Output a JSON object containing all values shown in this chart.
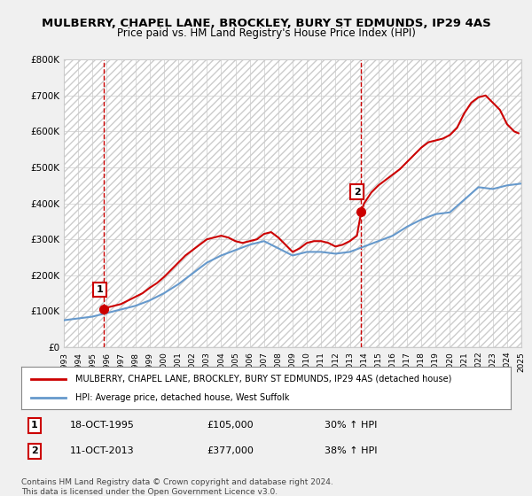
{
  "title": "MULBERRY, CHAPEL LANE, BROCKLEY, BURY ST EDMUNDS, IP29 4AS",
  "subtitle": "Price paid vs. HM Land Registry's House Price Index (HPI)",
  "legend_line1": "MULBERRY, CHAPEL LANE, BROCKLEY, BURY ST EDMUNDS, IP29 4AS (detached house)",
  "legend_line2": "HPI: Average price, detached house, West Suffolk",
  "footnote": "Contains HM Land Registry data © Crown copyright and database right 2024.\nThis data is licensed under the Open Government Licence v3.0.",
  "sale1_date": "18-OCT-1995",
  "sale1_price": 105000,
  "sale1_label": "30% ↑ HPI",
  "sale1_x": 1995.8,
  "sale2_date": "11-OCT-2013",
  "sale2_price": 377000,
  "sale2_label": "38% ↑ HPI",
  "sale2_x": 2013.8,
  "red_color": "#cc0000",
  "blue_color": "#6699cc",
  "background_color": "#f0f0f0",
  "plot_bg_color": "#ffffff",
  "grid_color": "#cccccc",
  "ylim": [
    0,
    800000
  ],
  "xlim": [
    1993,
    2025
  ],
  "yticks": [
    0,
    100000,
    200000,
    300000,
    400000,
    500000,
    600000,
    700000,
    800000
  ],
  "xticks": [
    1993,
    1994,
    1995,
    1996,
    1997,
    1998,
    1999,
    2000,
    2001,
    2002,
    2003,
    2004,
    2005,
    2006,
    2007,
    2008,
    2009,
    2010,
    2011,
    2012,
    2013,
    2014,
    2015,
    2016,
    2017,
    2018,
    2019,
    2020,
    2021,
    2022,
    2023,
    2024,
    2025
  ],
  "hpi_x": [
    1993,
    1994,
    1995,
    1996,
    1997,
    1998,
    1999,
    2000,
    2001,
    2002,
    2003,
    2004,
    2005,
    2006,
    2007,
    2008,
    2009,
    2010,
    2011,
    2012,
    2013,
    2014,
    2015,
    2016,
    2017,
    2018,
    2019,
    2020,
    2021,
    2022,
    2023,
    2024,
    2025
  ],
  "hpi_y": [
    75000,
    80000,
    85000,
    95000,
    105000,
    115000,
    130000,
    150000,
    175000,
    205000,
    235000,
    255000,
    270000,
    285000,
    295000,
    275000,
    255000,
    265000,
    265000,
    260000,
    265000,
    280000,
    295000,
    310000,
    335000,
    355000,
    370000,
    375000,
    410000,
    445000,
    440000,
    450000,
    455000
  ],
  "price_x": [
    1995.8,
    1996,
    1997,
    1997.5,
    1998,
    1998.5,
    1999,
    1999.5,
    2000,
    2000.5,
    2001,
    2001.5,
    2002,
    2002.5,
    2003,
    2003.5,
    2004,
    2004.5,
    2005,
    2005.5,
    2006,
    2006.5,
    2007,
    2007.5,
    2008,
    2008.5,
    2009,
    2009.5,
    2010,
    2010.5,
    2011,
    2011.5,
    2012,
    2012.5,
    2013,
    2013.5,
    2013.8,
    2014,
    2014.5,
    2015,
    2015.5,
    2016,
    2016.5,
    2017,
    2017.5,
    2018,
    2018.5,
    2019,
    2019.5,
    2020,
    2020.5,
    2021,
    2021.5,
    2022,
    2022.5,
    2023,
    2023.5,
    2024,
    2024.5,
    2024.8
  ],
  "price_y": [
    105000,
    110000,
    120000,
    130000,
    140000,
    150000,
    165000,
    178000,
    195000,
    215000,
    235000,
    255000,
    270000,
    285000,
    300000,
    305000,
    310000,
    305000,
    295000,
    290000,
    295000,
    300000,
    315000,
    320000,
    305000,
    285000,
    265000,
    275000,
    290000,
    295000,
    295000,
    290000,
    280000,
    285000,
    295000,
    310000,
    377000,
    400000,
    430000,
    450000,
    465000,
    480000,
    495000,
    515000,
    535000,
    555000,
    570000,
    575000,
    580000,
    590000,
    610000,
    650000,
    680000,
    695000,
    700000,
    680000,
    660000,
    620000,
    600000,
    595000
  ]
}
